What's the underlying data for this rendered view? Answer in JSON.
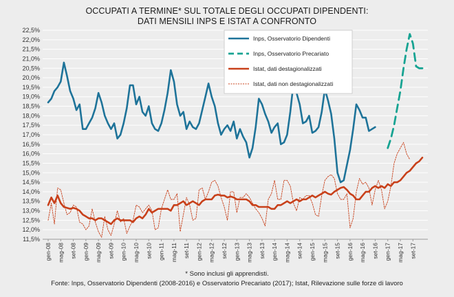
{
  "title_line1": "OCCUPATI A TERMINE* SUL TOTALE DEGLI OCCUPATI DIPENDENTI:",
  "title_line2": "DATI MENSILI INPS E ISTAT A CONFRONTO",
  "footnote1": "* Sono inclusi gli apprendisti.",
  "footnote2": "Fonte: Inps, Osservatorio Dipendenti (2008-2016)  e Osservatorio Precariato (2017); Istat, Rilevazione sulle forze di lavoro",
  "colors": {
    "inps_dip": "#1e7399",
    "inps_prec": "#16a392",
    "istat_sa": "#c8401a",
    "istat_nsa": "#c8401a",
    "background": "#ededed",
    "grid": "#ffffff"
  },
  "chart_data": {
    "type": "line",
    "ylim": [
      11.5,
      22.5
    ],
    "yticks": [
      "22,5%",
      "22,0%",
      "21,5%",
      "21,0%",
      "20,5%",
      "20,0%",
      "19,5%",
      "19,0%",
      "18,5%",
      "18,0%",
      "17,5%",
      "17,0%",
      "16,5%",
      "16,0%",
      "15,5%",
      "15,0%",
      "14,5%",
      "14,0%",
      "13,5%",
      "13,0%",
      "12,5%",
      "12,0%",
      "11,5%"
    ],
    "x_labels": [
      "gen-08",
      "mag-08",
      "set-08",
      "gen-09",
      "mag-09",
      "set-09",
      "gen-10",
      "mag-10",
      "set-10",
      "gen-11",
      "mag-11",
      "set-11",
      "gen-12",
      "mag-12",
      "set-12",
      "gen-13",
      "mag-13",
      "set-13",
      "gen-14",
      "mag-14",
      "set-14",
      "gen-15",
      "mag-15",
      "set-15",
      "gen-16",
      "mag-16",
      "set-16",
      "gen-17",
      "mag-17",
      "set-17"
    ],
    "legend": {
      "placement": "top-right"
    },
    "series": [
      {
        "name": "Inps, Osservatorio Dipendenti",
        "style": "solid-thick",
        "start_month": 0,
        "values": [
          18.7,
          18.9,
          19.3,
          19.5,
          19.8,
          20.8,
          20.1,
          19.3,
          18.9,
          18.3,
          18.6,
          17.3,
          17.3,
          17.6,
          17.9,
          18.4,
          19.2,
          18.7,
          18.0,
          17.6,
          17.3,
          17.6,
          16.8,
          17.0,
          17.6,
          18.4,
          19.6,
          19.6,
          18.6,
          19.0,
          18.2,
          18.0,
          18.5,
          17.6,
          17.3,
          17.2,
          17.6,
          18.3,
          19.2,
          20.4,
          19.8,
          18.6,
          18.0,
          18.2,
          17.3,
          17.7,
          17.4,
          17.3,
          17.6,
          18.3,
          19.0,
          19.7,
          19.0,
          18.5,
          17.6,
          17.0,
          17.3,
          17.5,
          17.2,
          17.7,
          16.8,
          17.3,
          16.9,
          16.6,
          15.8,
          16.3,
          17.4,
          18.9,
          18.6,
          18.1,
          17.7,
          17.1,
          17.4,
          17.6,
          16.5,
          16.6,
          17.0,
          18.2,
          19.7,
          19.2,
          18.6,
          17.6,
          17.7,
          18.0,
          17.1,
          17.2,
          17.4,
          18.2,
          19.4,
          18.8,
          18.1,
          16.8,
          15.0,
          14.5,
          14.6,
          15.4,
          16.2,
          17.3,
          18.6,
          18.3,
          17.9,
          17.9,
          17.2,
          17.3,
          17.4
        ]
      },
      {
        "name": "Inps, Osservatorio Precariato",
        "style": "dashed-thick",
        "start_month": 108,
        "values": [
          16.3,
          16.8,
          17.5,
          18.4,
          19.3,
          20.5,
          21.5,
          22.3,
          21.8,
          20.6,
          20.5,
          20.5
        ]
      },
      {
        "name": "Istat, dati destagionalizzati",
        "style": "solid-thick",
        "start_month": 0,
        "values": [
          13.3,
          13.7,
          13.4,
          13.8,
          13.4,
          13.2,
          13.15,
          13.1,
          13.15,
          13.1,
          13.0,
          12.8,
          12.7,
          12.6,
          12.6,
          12.5,
          12.6,
          12.6,
          12.5,
          12.4,
          12.3,
          12.5,
          12.6,
          12.5,
          12.5,
          12.5,
          12.5,
          12.4,
          12.6,
          12.7,
          12.6,
          12.8,
          13.1,
          12.9,
          13.0,
          13.1,
          13.1,
          13.1,
          13.1,
          13.0,
          13.3,
          13.3,
          13.4,
          13.5,
          13.3,
          13.4,
          13.5,
          13.4,
          13.3,
          13.5,
          13.6,
          13.6,
          13.6,
          13.8,
          13.85,
          13.8,
          13.8,
          13.7,
          13.75,
          13.7,
          13.6,
          13.6,
          13.6,
          13.6,
          13.5,
          13.3,
          13.3,
          13.2,
          13.2,
          13.2,
          13.2,
          13.1,
          13.1,
          13.3,
          13.3,
          13.4,
          13.5,
          13.4,
          13.5,
          13.6,
          13.5,
          13.6,
          13.6,
          13.7,
          13.8,
          13.7,
          13.8,
          13.9,
          14.0,
          13.9,
          13.85,
          14.0,
          14.1,
          14.2,
          14.25,
          14.1,
          13.9,
          13.8,
          13.6,
          13.6,
          13.8,
          14.0,
          14.0,
          14.2,
          14.3,
          14.2,
          14.3,
          14.2,
          14.4,
          14.3,
          14.5,
          14.5,
          14.6,
          14.8,
          15.0,
          15.1,
          15.3,
          15.5,
          15.6,
          15.8
        ]
      },
      {
        "name": "Istat, dati non destagionalizzati",
        "style": "dashed-thin",
        "start_month": 0,
        "values": [
          12.5,
          13.4,
          12.3,
          14.2,
          14.1,
          13.4,
          12.8,
          12.9,
          13.3,
          13.2,
          12.4,
          12.3,
          12.0,
          12.2,
          13.1,
          12.4,
          11.9,
          11.6,
          12.7,
          12.0,
          11.7,
          12.3,
          13.0,
          12.4,
          12.6,
          11.8,
          12.2,
          12.5,
          13.3,
          13.2,
          12.9,
          13.1,
          13.3,
          13.0,
          12.0,
          12.1,
          13.1,
          13.6,
          14.1,
          13.6,
          13.6,
          13.9,
          11.9,
          12.8,
          13.7,
          13.3,
          12.5,
          12.6,
          14.1,
          14.2,
          13.6,
          14.0,
          14.5,
          14.6,
          14.3,
          13.7,
          13.2,
          12.5,
          14.0,
          14.0,
          12.9,
          13.7,
          13.7,
          13.9,
          13.7,
          13.4,
          13.1,
          12.9,
          12.6,
          12.2,
          13.6,
          13.9,
          14.6,
          13.6,
          13.6,
          14.6,
          14.6,
          14.3,
          13.4,
          13.0,
          13.7,
          13.6,
          13.8,
          13.8,
          13.4,
          12.8,
          12.7,
          13.8,
          14.6,
          14.8,
          14.9,
          14.7,
          13.9,
          13.6,
          13.6,
          13.9,
          12.1,
          12.6,
          14.0,
          14.7,
          14.4,
          14.5,
          14.2,
          13.3,
          14.1,
          14.6,
          14.1,
          13.1,
          13.5,
          14.3,
          15.5,
          16.0,
          16.3,
          16.6,
          16.0,
          15.7
        ]
      }
    ]
  }
}
